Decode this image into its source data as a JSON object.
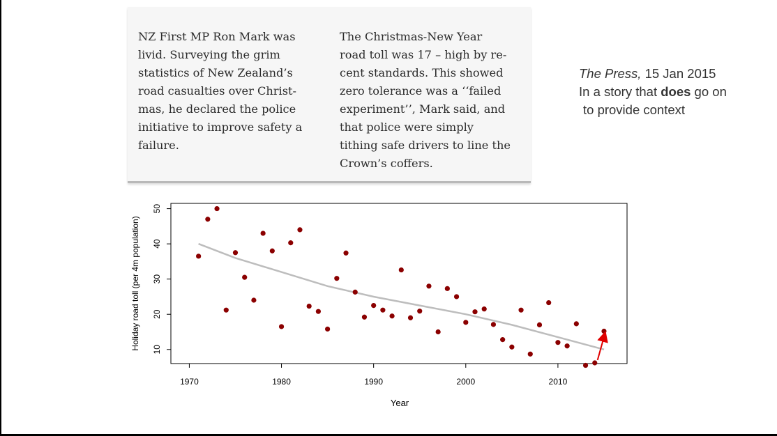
{
  "clipping": {
    "col1": [
      "NZ First MP Ron Mark was",
      "livid. Surveying the grim",
      "statistics of New Zealand’s",
      "road casualties over Christ-",
      "mas, he declared the police",
      "initiative to improve safety a",
      "failure."
    ],
    "col2": [
      "The Christmas-New Year",
      "road toll was 17 – high by re-",
      "cent standards. This showed",
      "zero tolerance was a ‘‘failed",
      "experiment’’, Mark said, and",
      "that police were simply",
      "tithing safe drivers to line the",
      "Crown’s coffers."
    ]
  },
  "caption": {
    "source": "The Press,",
    "date": " 15 Jan 2015",
    "line2_pre": "In a story that ",
    "line2_bold": "does",
    "line2_post": " go on",
    "line3": "to provide context"
  },
  "chart_data": {
    "type": "scatter",
    "xlabel": "Year",
    "ylabel": "Holiday road toll (per 4m population)",
    "xlim": [
      1968,
      2017.5
    ],
    "ylim": [
      6,
      51.5
    ],
    "xticks": [
      1970,
      1980,
      1990,
      2000,
      2010
    ],
    "yticks": [
      10,
      20,
      30,
      40,
      50
    ],
    "grid": false,
    "colors": {
      "points": "#8b0000",
      "trend": "#bdbdbd",
      "arrow": "#e00000"
    },
    "points": [
      {
        "x": 1971,
        "y": 36.5
      },
      {
        "x": 1972,
        "y": 47
      },
      {
        "x": 1973,
        "y": 50
      },
      {
        "x": 1974,
        "y": 21.2
      },
      {
        "x": 1975,
        "y": 37.5
      },
      {
        "x": 1976,
        "y": 30.5
      },
      {
        "x": 1977,
        "y": 24
      },
      {
        "x": 1978,
        "y": 43
      },
      {
        "x": 1979,
        "y": 38
      },
      {
        "x": 1980,
        "y": 16.5
      },
      {
        "x": 1981,
        "y": 40.3
      },
      {
        "x": 1982,
        "y": 44
      },
      {
        "x": 1983,
        "y": 22.3
      },
      {
        "x": 1984,
        "y": 20.8
      },
      {
        "x": 1985,
        "y": 15.8
      },
      {
        "x": 1986,
        "y": 30.2
      },
      {
        "x": 1987,
        "y": 37.4
      },
      {
        "x": 1988,
        "y": 26.3
      },
      {
        "x": 1989,
        "y": 19.2
      },
      {
        "x": 1990,
        "y": 22.5
      },
      {
        "x": 1991,
        "y": 21.2
      },
      {
        "x": 1992,
        "y": 19.5
      },
      {
        "x": 1993,
        "y": 32.6
      },
      {
        "x": 1994,
        "y": 19
      },
      {
        "x": 1995,
        "y": 20.9
      },
      {
        "x": 1996,
        "y": 28
      },
      {
        "x": 1997,
        "y": 15
      },
      {
        "x": 1998,
        "y": 27.3
      },
      {
        "x": 1999,
        "y": 25
      },
      {
        "x": 2000,
        "y": 17.7
      },
      {
        "x": 2001,
        "y": 20.7
      },
      {
        "x": 2002,
        "y": 21.5
      },
      {
        "x": 2003,
        "y": 17.1
      },
      {
        "x": 2004,
        "y": 12.8
      },
      {
        "x": 2005,
        "y": 10.7
      },
      {
        "x": 2006,
        "y": 21.2
      },
      {
        "x": 2007,
        "y": 8.7
      },
      {
        "x": 2008,
        "y": 17
      },
      {
        "x": 2009,
        "y": 23.3
      },
      {
        "x": 2010,
        "y": 12
      },
      {
        "x": 2011,
        "y": 11
      },
      {
        "x": 2012,
        "y": 17.3
      },
      {
        "x": 2013,
        "y": 5.5
      },
      {
        "x": 2014,
        "y": 6.2
      },
      {
        "x": 2015,
        "y": 15.2
      }
    ],
    "trend": [
      {
        "x": 1971,
        "y": 40
      },
      {
        "x": 1975,
        "y": 36
      },
      {
        "x": 1980,
        "y": 32
      },
      {
        "x": 1985,
        "y": 28
      },
      {
        "x": 1990,
        "y": 25
      },
      {
        "x": 1995,
        "y": 22.5
      },
      {
        "x": 2000,
        "y": 20
      },
      {
        "x": 2005,
        "y": 17
      },
      {
        "x": 2010,
        "y": 13.5
      },
      {
        "x": 2015,
        "y": 10
      }
    ],
    "arrow": {
      "from": {
        "x": 2014.3,
        "y": 7
      },
      "to": {
        "x": 2015.1,
        "y": 14.5
      }
    }
  }
}
